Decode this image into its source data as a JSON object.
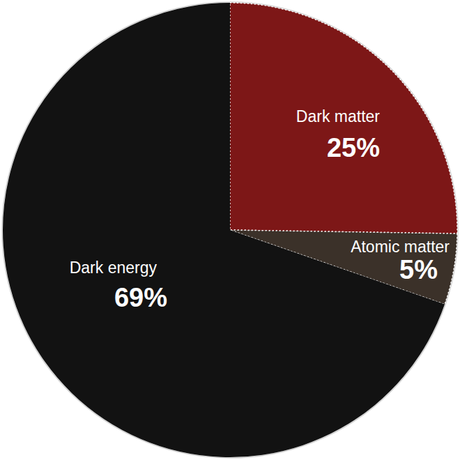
{
  "chart_data": {
    "type": "pie",
    "categories": [
      "Dark matter",
      "Atomic matter",
      "Dark energy"
    ],
    "values": [
      25,
      5,
      69
    ],
    "value_labels": [
      "25%",
      "5%",
      "69%"
    ],
    "colors": [
      "#7d1717",
      "#3b3129",
      "#121212"
    ],
    "data_labels": true
  }
}
